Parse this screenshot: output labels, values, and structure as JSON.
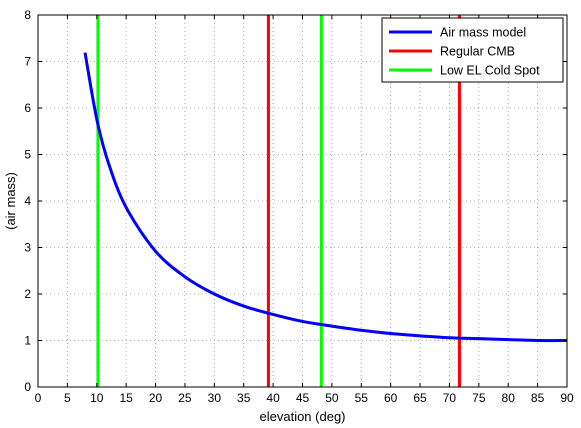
{
  "chart_data": {
    "type": "line",
    "xlabel": "elevation (deg)",
    "ylabel": "(air mass)",
    "xlim": [
      0,
      90
    ],
    "ylim": [
      0,
      8
    ],
    "xticks": [
      0,
      5,
      10,
      15,
      20,
      25,
      30,
      35,
      40,
      45,
      50,
      55,
      60,
      65,
      70,
      75,
      80,
      85,
      90
    ],
    "yticks": [
      0,
      1,
      2,
      3,
      4,
      5,
      6,
      7,
      8
    ],
    "grid": true,
    "legend_position": "top-right",
    "series": [
      {
        "name": "Air mass model",
        "color": "#0000ff",
        "x": [
          8,
          10,
          12,
          15,
          20,
          25,
          30,
          35,
          40,
          45,
          50,
          55,
          60,
          65,
          70,
          75,
          80,
          85,
          90
        ],
        "y": [
          7.19,
          5.76,
          4.81,
          3.86,
          2.92,
          2.37,
          2.0,
          1.74,
          1.56,
          1.41,
          1.31,
          1.22,
          1.15,
          1.1,
          1.06,
          1.04,
          1.02,
          1.0,
          1.0
        ]
      },
      {
        "name": "Regular CMB",
        "color": "#ff0000",
        "type": "vertical_lines",
        "x": [
          39.2,
          71.7
        ]
      },
      {
        "name": "Low EL Cold Spot",
        "color": "#00ff00",
        "type": "vertical_lines",
        "x": [
          10.2,
          48.2
        ]
      }
    ]
  }
}
